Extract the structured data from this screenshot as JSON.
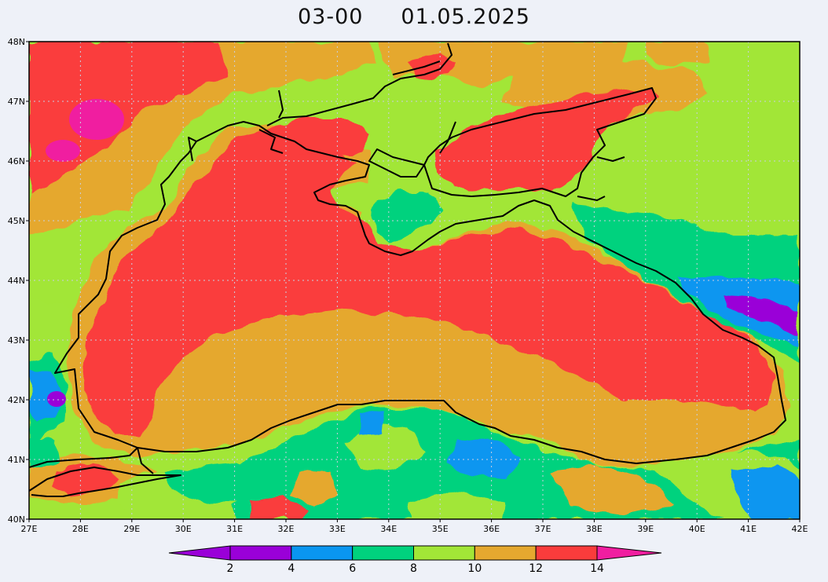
{
  "title": {
    "time": "03-00",
    "date": "01.05.2025"
  },
  "axes": {
    "lat_labels": [
      "48N",
      "47N",
      "46N",
      "45N",
      "44N",
      "43N",
      "42N",
      "41N",
      "40N"
    ],
    "lon_labels": [
      "27E",
      "28E",
      "29E",
      "30E",
      "31E",
      "32E",
      "33E",
      "34E",
      "35E",
      "36E",
      "37E",
      "38E",
      "39E",
      "40E",
      "41E",
      "42E"
    ],
    "lat_range": [
      40,
      48
    ],
    "lon_range": [
      27,
      42
    ],
    "grid": "dotted"
  },
  "colorbar": {
    "levels": [
      "2",
      "4",
      "6",
      "8",
      "10",
      "12",
      "14"
    ],
    "colors": [
      "#9a00d8",
      "#0a96f0",
      "#00d27e",
      "#a2e637",
      "#e5a82f",
      "#fa3c3c",
      "#f01ea0"
    ],
    "extend": "both"
  },
  "palette": {
    "magenta": "#f01ea0",
    "red": "#fa3c3c",
    "orange": "#e5a82f",
    "yellow_green": "#a2e637",
    "green": "#00d27e",
    "blue": "#0a96f0",
    "purple": "#9a00d8",
    "coast": "#000000"
  },
  "chart_data": {
    "type": "heatmap",
    "title": "03-00    01.05.2025",
    "xlim": [
      27,
      42
    ],
    "ylim": [
      40,
      48
    ],
    "legend": "bottom",
    "levels": [
      2,
      4,
      6,
      8,
      10,
      12,
      14
    ],
    "approx_regions": [
      {
        "area": "Black Sea western basin interior",
        "range": "12-14"
      },
      {
        "area": "Black Sea central-south belt",
        "range": "10-12"
      },
      {
        "area": "Black Sea eastern basin interior",
        "range": "12-14"
      },
      {
        "area": "Sea of Azov",
        "range": "12-14"
      },
      {
        "area": "Crimea interior",
        "range": "8-10"
      },
      {
        "area": "NW land near 28E 46.8N",
        "range": ">14"
      },
      {
        "area": "NE Turkey near 41.5E 43N",
        "range": "2-4"
      },
      {
        "area": "Anatolia near 34-36E 41N",
        "range": "6-8"
      }
    ]
  }
}
